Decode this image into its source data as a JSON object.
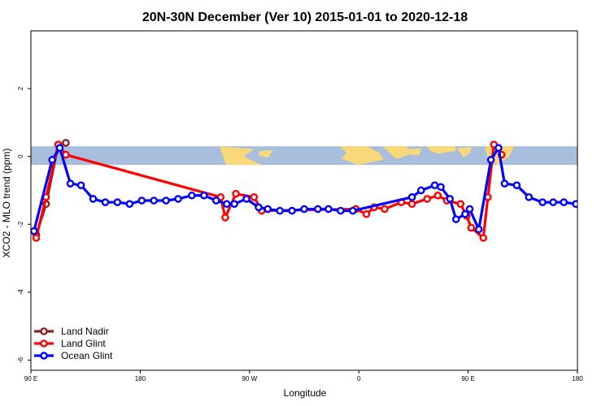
{
  "chart_data": {
    "type": "line",
    "title": "20N-30N December (Ver 10)   2015-01-01 to 2020-12-18",
    "xlabel": "Longitude",
    "ylabel": "XCO2 - MLO trend (ppm)",
    "xlim": [
      -90,
      270
    ],
    "ylim": [
      -6.3,
      3.7
    ],
    "x_ticks": [
      {
        "value": -90,
        "label": "90 E"
      },
      {
        "value": -18,
        "label": "180"
      },
      {
        "value": 54,
        "label": "90 W"
      },
      {
        "value": 126,
        "label": "0"
      },
      {
        "value": 198,
        "label": "90 E"
      },
      {
        "value": 270,
        "label": "180"
      }
    ],
    "y_ticks": [
      {
        "value": 2,
        "label": "2"
      },
      {
        "value": 0,
        "label": "0"
      },
      {
        "value": -2,
        "label": "-2"
      },
      {
        "value": -4,
        "label": "-4"
      },
      {
        "value": -6,
        "label": "-6"
      }
    ],
    "map_band": {
      "ymin": -0.25,
      "ymax": 0.3,
      "ocean_color": "#a8bedc",
      "land_color": "#f8d878"
    },
    "legend_position": "bottom-left",
    "series": [
      {
        "name": "Land Nadir",
        "color": "#8b2323",
        "x": [
          -86.5,
          -80,
          -72,
          -67
        ],
        "y": [
          -2.3,
          -1.4,
          0.35,
          0.4
        ]
      },
      {
        "name": "Land Glint",
        "color": "#ff0000",
        "x": [
          -86.5,
          -80,
          -72,
          -67,
          35,
          38,
          45,
          57,
          62,
          124,
          131,
          136,
          143,
          154,
          161,
          171,
          178,
          184,
          193,
          197,
          200,
          208,
          211,
          215,
          220
        ],
        "y": [
          -2.4,
          -1.2,
          0.35,
          0.05,
          -1.2,
          -1.8,
          -1.1,
          -1.2,
          -1.6,
          -1.55,
          -1.7,
          -1.5,
          -1.55,
          -1.35,
          -1.4,
          -1.25,
          -1.15,
          -1.3,
          -1.4,
          -1.75,
          -2.1,
          -2.4,
          -1.2,
          0.35,
          0.05
        ]
      },
      {
        "name": "Ocean Glint",
        "color": "#0000ff",
        "x": [
          -88,
          -76,
          -71,
          -64,
          -57,
          -49,
          -41,
          -33,
          -25,
          -17,
          -9,
          -1,
          7,
          16,
          24,
          32,
          39,
          44,
          52,
          60,
          66,
          74,
          82,
          90,
          99,
          106,
          114,
          122,
          161,
          167,
          176,
          180,
          186,
          190,
          196,
          199,
          205,
          213,
          218,
          222,
          230,
          238,
          247,
          254,
          261,
          269
        ],
        "y": [
          -2.2,
          -0.1,
          0.25,
          -0.8,
          -0.85,
          -1.25,
          -1.35,
          -1.35,
          -1.4,
          -1.3,
          -1.3,
          -1.3,
          -1.25,
          -1.15,
          -1.15,
          -1.3,
          -1.4,
          -1.4,
          -1.25,
          -1.5,
          -1.55,
          -1.6,
          -1.6,
          -1.55,
          -1.55,
          -1.55,
          -1.6,
          -1.6,
          -1.2,
          -1.0,
          -0.85,
          -0.9,
          -1.25,
          -1.85,
          -1.7,
          -1.55,
          -2.15,
          -0.1,
          0.25,
          -0.8,
          -0.85,
          -1.2,
          -1.35,
          -1.35,
          -1.35,
          -1.4
        ]
      }
    ]
  }
}
